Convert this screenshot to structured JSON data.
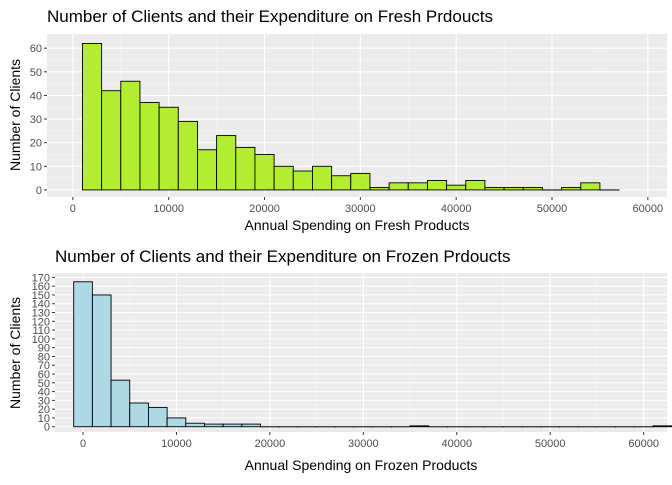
{
  "chart_data": [
    {
      "type": "bar",
      "title": "Number of Clients and their Expenditure on Fresh Prdoucts",
      "xlabel": "Annual Spending on Fresh Products",
      "ylabel": "Number of Clients",
      "fill": "#b2ed30",
      "stroke": "#000000",
      "panel_bg": "#ebebeb",
      "grid": true,
      "xlim": [
        -2700,
        62000
      ],
      "ylim": [
        -3,
        66
      ],
      "xticks": [
        0,
        10000,
        20000,
        30000,
        40000,
        50000,
        60000
      ],
      "xtick_labels": [
        "0",
        "10000",
        "20000",
        "30000",
        "40000",
        "50000",
        "60000"
      ],
      "yticks": [
        0,
        10,
        20,
        30,
        40,
        50,
        60
      ],
      "ytick_labels": [
        "0",
        "10",
        "20",
        "30",
        "40",
        "50",
        "60"
      ],
      "bin_start": 1000,
      "bin_width": 2000,
      "values": [
        62,
        42,
        46,
        37,
        35,
        29,
        17,
        23,
        18,
        15,
        10,
        8,
        10,
        6,
        7,
        1,
        3,
        3,
        4,
        2,
        4,
        1,
        1,
        1,
        0,
        1,
        3,
        0
      ]
    },
    {
      "type": "bar",
      "title": "Number of Clients and their Expenditure on Frozen Prdoucts",
      "xlabel": "Annual Spending on Frozen Products",
      "ylabel": "Number of Clients",
      "fill": "#add8e6",
      "stroke": "#000000",
      "panel_bg": "#ebebeb",
      "grid": true,
      "xlim": [
        -3000,
        62500
      ],
      "ylim": [
        -6,
        175
      ],
      "xticks": [
        0,
        10000,
        20000,
        30000,
        40000,
        50000,
        60000
      ],
      "xtick_labels": [
        "0",
        "10000",
        "20000",
        "30000",
        "40000",
        "50000",
        "60000"
      ],
      "yticks": [
        0,
        10,
        20,
        30,
        40,
        50,
        60,
        70,
        80,
        90,
        100,
        110,
        120,
        130,
        140,
        150,
        160,
        170
      ],
      "ytick_labels": [
        "0",
        "10",
        "20",
        "30",
        "40",
        "50",
        "60",
        "70",
        "80",
        "90",
        "100",
        "110",
        "120",
        "130",
        "140",
        "150",
        "160",
        "170"
      ],
      "bin_start": -1000,
      "bin_width": 2000,
      "values": [
        165,
        150,
        53,
        27,
        22,
        10,
        4,
        3,
        3,
        3,
        0,
        0,
        0,
        0,
        0,
        0,
        0,
        0,
        1,
        0,
        0,
        0,
        0,
        0,
        0,
        0,
        0,
        0,
        0,
        0,
        0,
        1
      ]
    }
  ]
}
